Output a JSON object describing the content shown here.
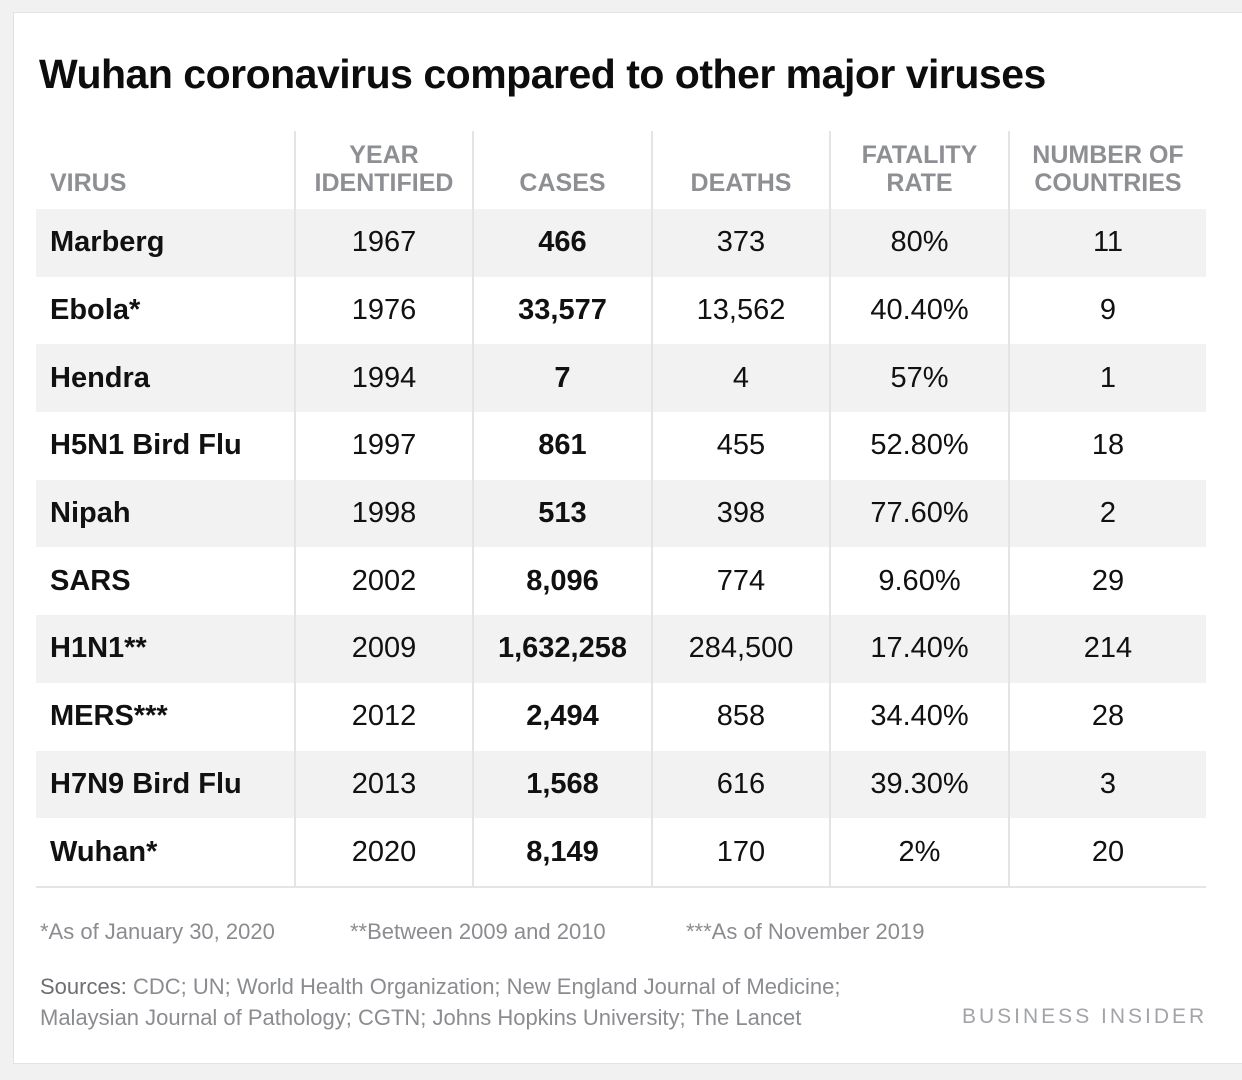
{
  "chart_data": {
    "type": "table",
    "title": "Wuhan coronavirus compared to other major viruses",
    "columns": [
      "VIRUS",
      "YEAR\nIDENTIFIED",
      "CASES",
      "DEATHS",
      "FATALITY\nRATE",
      "NUMBER OF\nCOUNTRIES"
    ],
    "rows": [
      [
        "Marberg",
        "1967",
        "466",
        "373",
        "80%",
        "11"
      ],
      [
        "Ebola*",
        "1976",
        "33,577",
        "13,562",
        "40.40%",
        "9"
      ],
      [
        "Hendra",
        "1994",
        "7",
        "4",
        "57%",
        "1"
      ],
      [
        "H5N1 Bird Flu",
        "1997",
        "861",
        "455",
        "52.80%",
        "18"
      ],
      [
        "Nipah",
        "1998",
        "513",
        "398",
        "77.60%",
        "2"
      ],
      [
        "SARS",
        "2002",
        "8,096",
        "774",
        "9.60%",
        "29"
      ],
      [
        "H1N1**",
        "2009",
        "1,632,258",
        "284,500",
        "17.40%",
        "214"
      ],
      [
        "MERS***",
        "2012",
        "2,494",
        "858",
        "34.40%",
        "28"
      ],
      [
        "H7N9 Bird Flu",
        "2013",
        "1,568",
        "616",
        "39.30%",
        "3"
      ],
      [
        "Wuhan*",
        "2020",
        "8,149",
        "170",
        "2%",
        "20"
      ]
    ],
    "bold_column": 2
  },
  "footnotes": [
    "*As of January 30, 2020",
    "**Between 2009 and 2010",
    "***As of November 2019"
  ],
  "sources": {
    "label": "Sources:",
    "line1": " CDC; UN; World Health Organization; New England Journal of Medicine;",
    "line2": "Malaysian Journal of Pathology; CGTN; Johns Hopkins University; The Lancet"
  },
  "brand": "BUSINESS INSIDER",
  "colors": {
    "title": "#0d0d0d",
    "header_text": "#8d8f93",
    "row_stripe": "#f2f2f2",
    "note_text": "#8a8c90"
  }
}
